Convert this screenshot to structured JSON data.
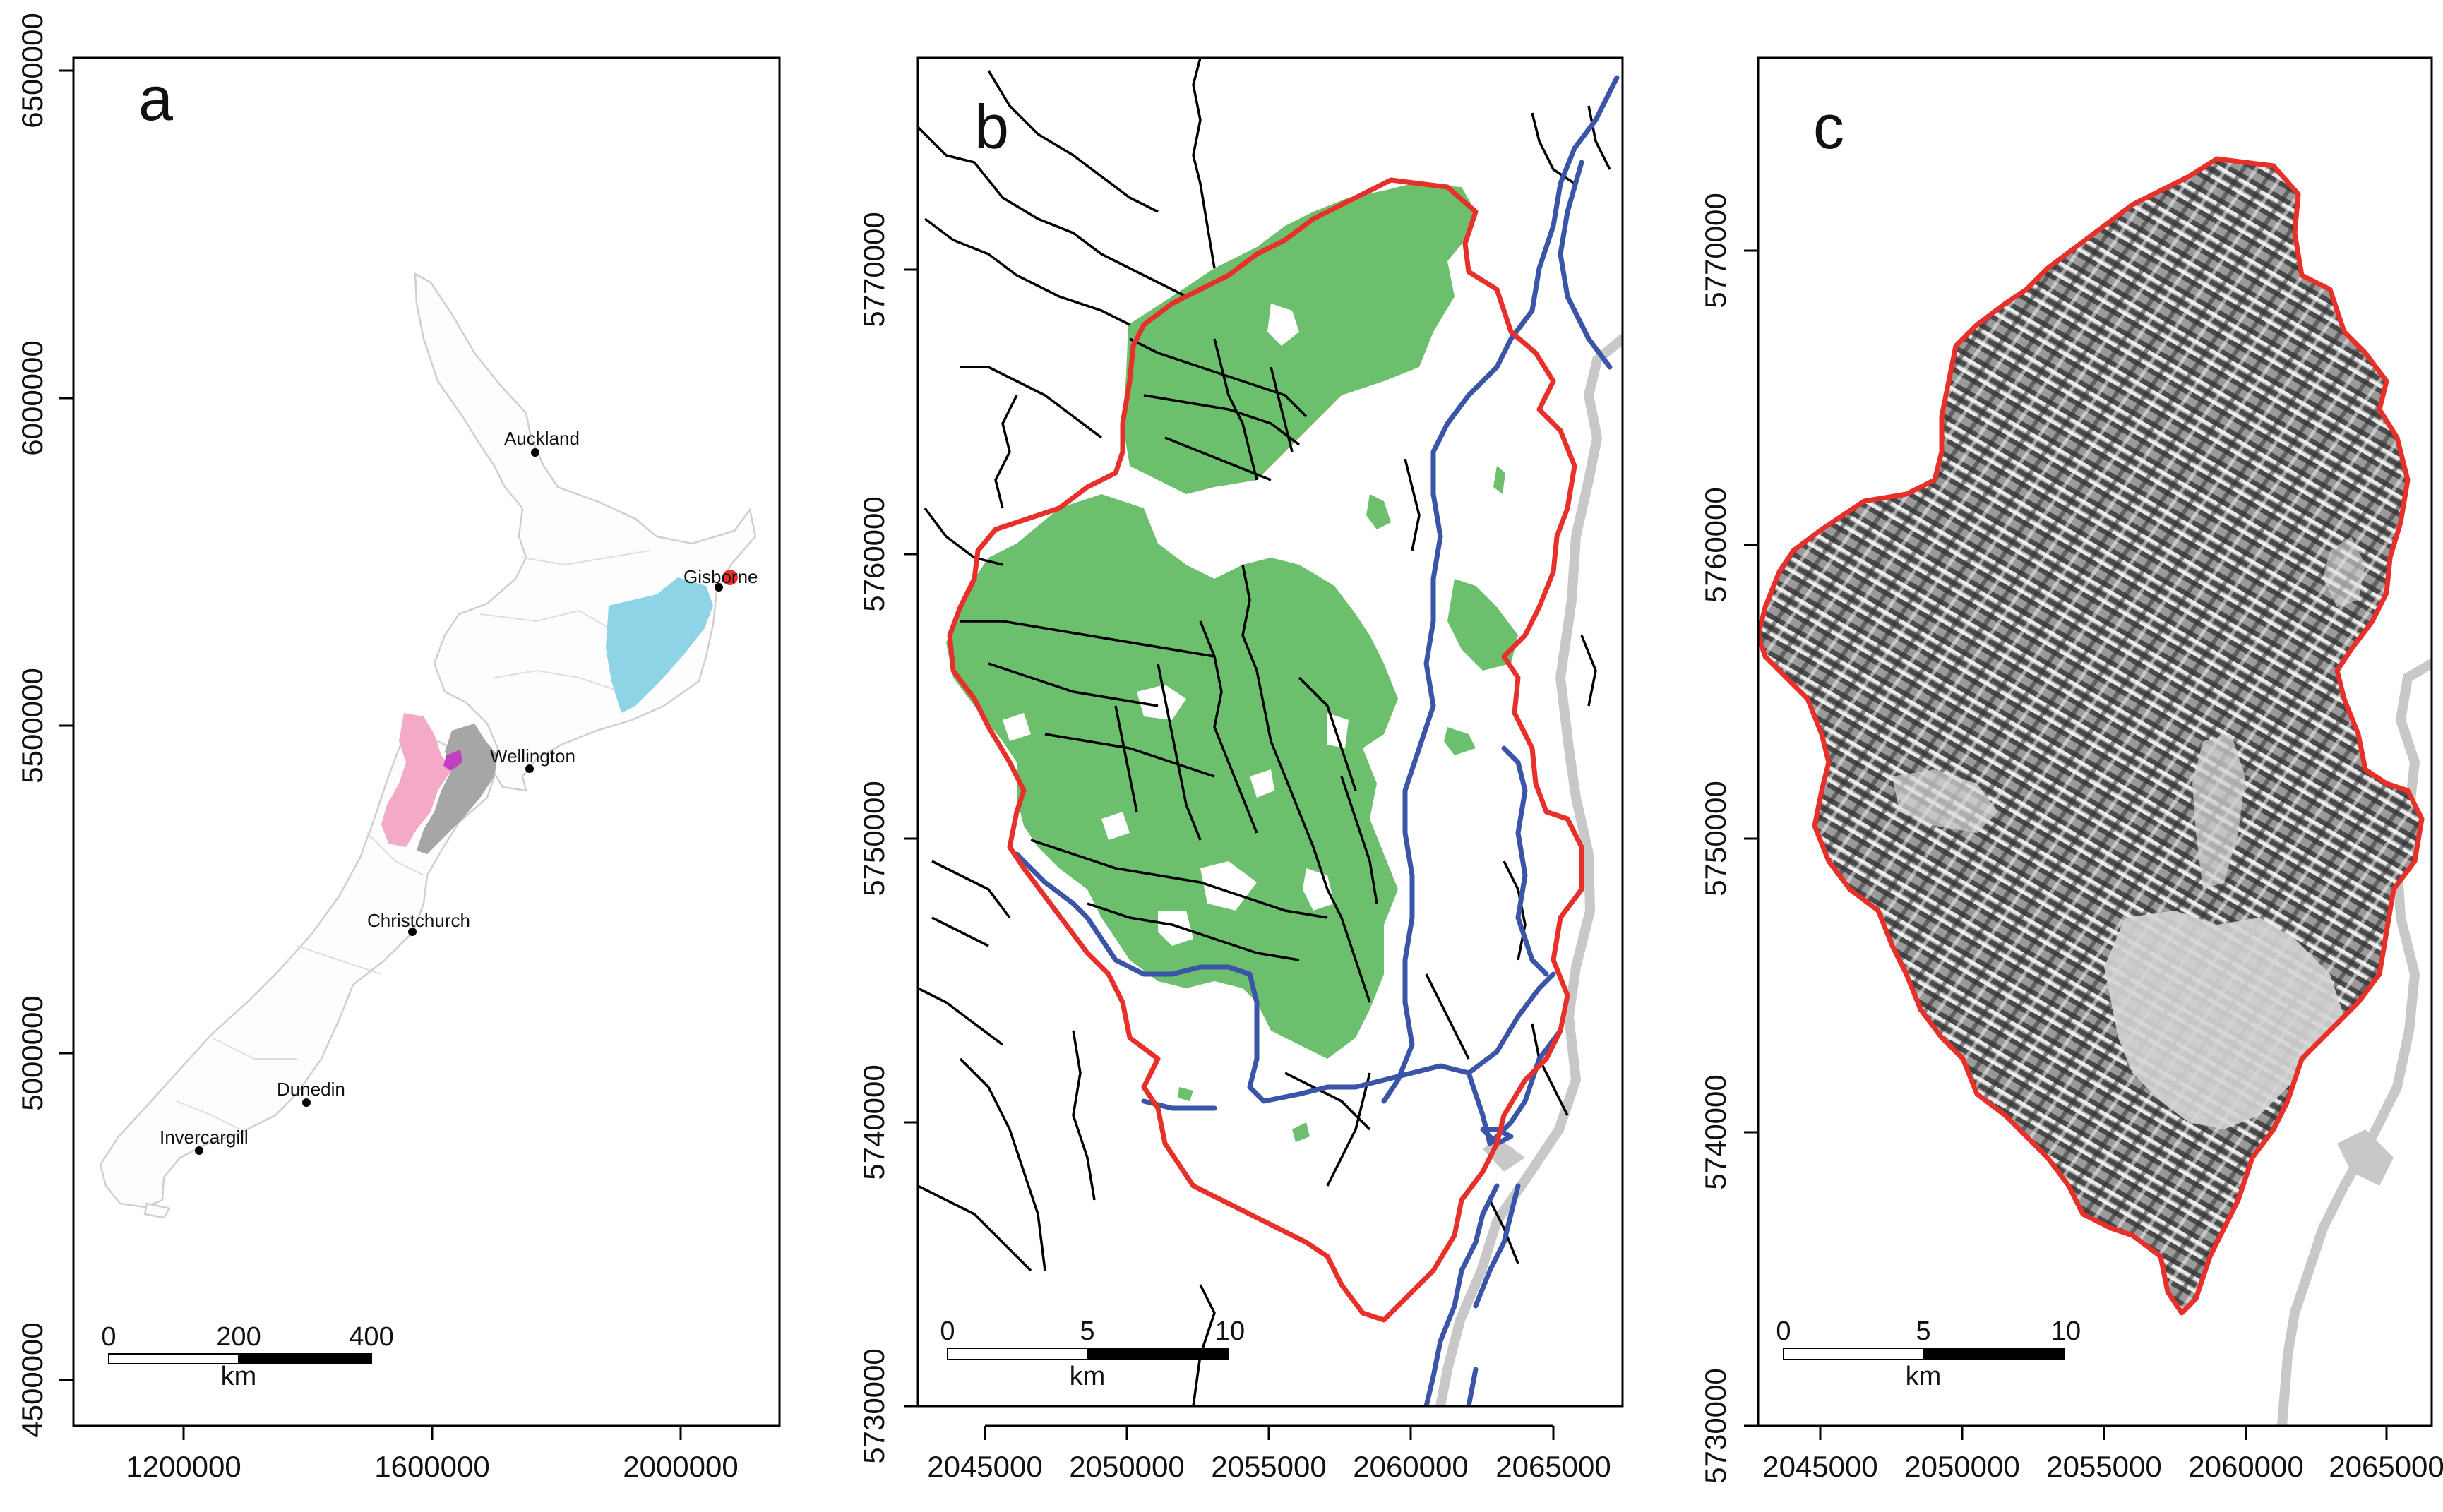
{
  "panels": {
    "a": {
      "label": "a",
      "y_ticks": [
        "6500000",
        "6000000",
        "5500000",
        "5000000",
        "4500000"
      ],
      "x_ticks": [
        "1200000",
        "1600000",
        "2000000"
      ],
      "cities": [
        "Auckland",
        "Gisborne",
        "Wellington",
        "Christchurch",
        "Dunedin",
        "Invercargill"
      ],
      "scalebar": {
        "labels": [
          "0",
          "200",
          "400"
        ],
        "unit": "km"
      },
      "colors": {
        "gisborne_region": "#9acd3a",
        "hawkes_bay": "#8fd3e6",
        "pink_region": "#f4a9c6",
        "grey_region": "#a6a6a6",
        "magenta": "#c040c0",
        "site_marker": "#e8302a",
        "outline": "#d0d0d0"
      }
    },
    "b": {
      "label": "b",
      "y_ticks": [
        "5770000",
        "5760000",
        "5750000",
        "5740000",
        "5730000"
      ],
      "x_ticks": [
        "2045000",
        "2050000",
        "2055000",
        "2060000",
        "2065000"
      ],
      "scalebar": {
        "labels": [
          "0",
          "5",
          "10"
        ],
        "unit": "km"
      },
      "colors": {
        "forest": "#6cbf6c",
        "catchment": "#e8302a",
        "roads": "#3a55a8",
        "rivers": "#000000",
        "coast": "#c8c8c8"
      }
    },
    "c": {
      "label": "c",
      "y_ticks": [
        "5770000",
        "5760000",
        "5750000",
        "5740000",
        "5730000"
      ],
      "x_ticks": [
        "2045000",
        "2050000",
        "2055000",
        "2060000",
        "2065000"
      ],
      "scalebar": {
        "labels": [
          "0",
          "5",
          "10"
        ],
        "unit": "km"
      },
      "colors": {
        "hillshade_dark": "#5a5a5a",
        "hillshade_light": "#d0d0d0",
        "catchment": "#e8302a",
        "coast": "#c8c8c8"
      }
    }
  }
}
